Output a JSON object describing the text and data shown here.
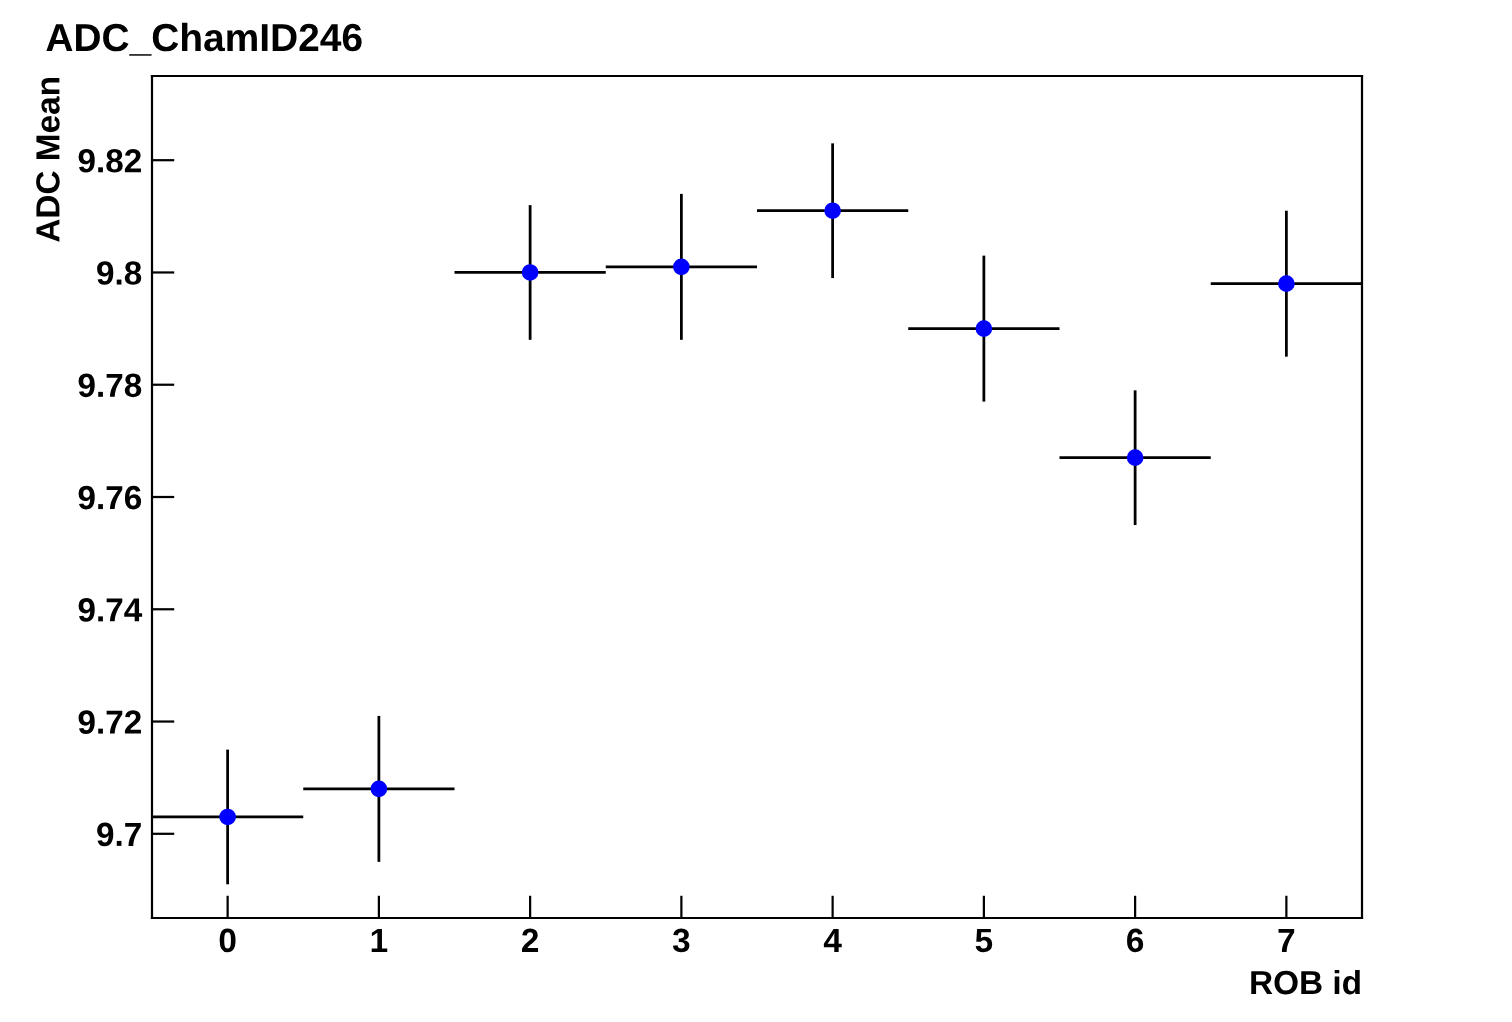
{
  "chart_data": {
    "type": "scatter",
    "title": "ADC_ChamID246",
    "xlabel": "ROB id",
    "ylabel": "ADC Mean",
    "x": [
      0,
      1,
      2,
      3,
      4,
      5,
      6,
      7
    ],
    "series": [
      {
        "color": "#0000ff",
        "values": [
          9.703,
          9.708,
          9.8,
          9.801,
          9.811,
          9.79,
          9.767,
          9.798
        ],
        "errors": [
          0.012,
          0.013,
          0.012,
          0.013,
          0.012,
          0.013,
          0.012,
          0.013
        ],
        "xerrors": [
          0.5,
          0.5,
          0.5,
          0.5,
          0.5,
          0.5,
          0.5,
          0.5
        ]
      }
    ],
    "xlim": [
      -0.5,
      7.5
    ],
    "xticks": [
      0,
      1,
      2,
      3,
      4,
      5,
      6,
      7
    ],
    "ylim": [
      9.685,
      9.835
    ],
    "yticks": [
      {
        "value": 9.7,
        "label": "9.7"
      },
      9.72,
      9.74,
      9.76,
      9.78,
      {
        "value": 9.8,
        "label": "9.8"
      },
      9.82
    ],
    "marker": "circle",
    "grid": false,
    "legend": false
  }
}
